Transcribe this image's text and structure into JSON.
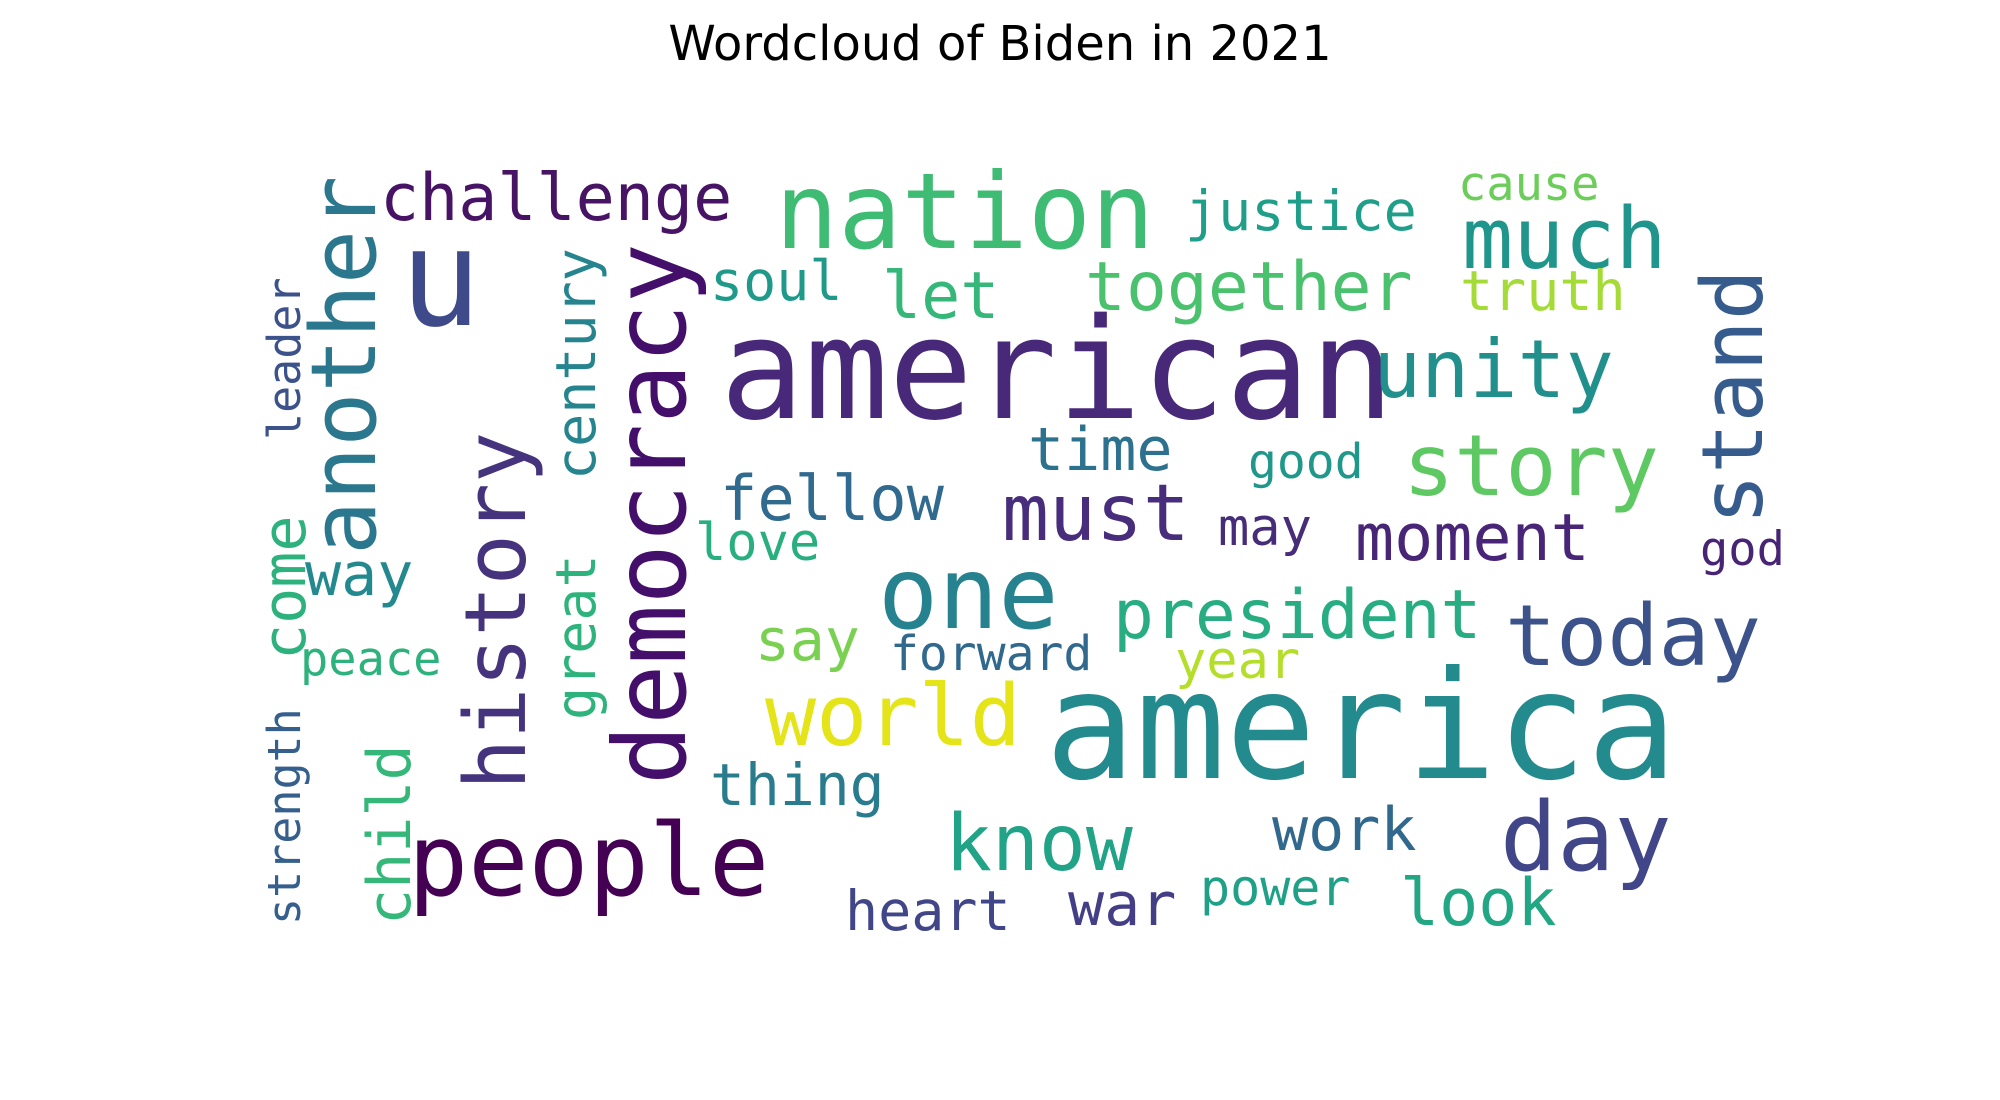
{
  "chart_data": {
    "type": "wordcloud",
    "title": "Wordcloud of Biden in 2021",
    "words": [
      {
        "text": "american",
        "color": "#482878",
        "rotate": 0
      },
      {
        "text": "america",
        "color": "#238a8d",
        "rotate": 0
      },
      {
        "text": "nation",
        "color": "#3fbc73",
        "rotate": 0
      },
      {
        "text": "u",
        "color": "#3e4a89",
        "rotate": 0
      },
      {
        "text": "democracy",
        "color": "#440f6a",
        "rotate": -90
      },
      {
        "text": "people",
        "color": "#440154",
        "rotate": 0
      },
      {
        "text": "one",
        "color": "#26828e",
        "rotate": 0
      },
      {
        "text": "another",
        "color": "#2a778e",
        "rotate": -90
      },
      {
        "text": "history",
        "color": "#46337e",
        "rotate": -90
      },
      {
        "text": "day",
        "color": "#404688",
        "rotate": 0
      },
      {
        "text": "today",
        "color": "#3b528b",
        "rotate": 0
      },
      {
        "text": "much",
        "color": "#1f958b",
        "rotate": 0
      },
      {
        "text": "stand",
        "color": "#365c8d",
        "rotate": -90
      },
      {
        "text": "story",
        "color": "#5ec962",
        "rotate": 0
      },
      {
        "text": "unity",
        "color": "#21908d",
        "rotate": 0
      },
      {
        "text": "world",
        "color": "#e4e419",
        "rotate": 0
      },
      {
        "text": "know",
        "color": "#20a386",
        "rotate": 0
      },
      {
        "text": "must",
        "color": "#472d7b",
        "rotate": 0
      },
      {
        "text": "challenge",
        "color": "#471365",
        "rotate": 0
      },
      {
        "text": "together",
        "color": "#4ac16d",
        "rotate": 0
      },
      {
        "text": "president",
        "color": "#27ad81",
        "rotate": 0
      },
      {
        "text": "moment",
        "color": "#482576",
        "rotate": 0
      },
      {
        "text": "fellow",
        "color": "#306a8e",
        "rotate": 0
      },
      {
        "text": "war",
        "color": "#433e85",
        "rotate": 0
      },
      {
        "text": "look",
        "color": "#22a785",
        "rotate": 0
      },
      {
        "text": "come",
        "color": "#2db27d",
        "rotate": -90
      },
      {
        "text": "let",
        "color": "#35b779",
        "rotate": 0
      },
      {
        "text": "justice",
        "color": "#1f9e89",
        "rotate": 0
      },
      {
        "text": "century",
        "color": "#25848e",
        "rotate": -90
      },
      {
        "text": "great",
        "color": "#2eb37c",
        "rotate": -90
      },
      {
        "text": "child",
        "color": "#35b779",
        "rotate": -90
      },
      {
        "text": "way",
        "color": "#23898e",
        "rotate": 0
      },
      {
        "text": "work",
        "color": "#31688e",
        "rotate": 0
      },
      {
        "text": "time",
        "color": "#2c718e",
        "rotate": 0
      },
      {
        "text": "heart",
        "color": "#404688",
        "rotate": 0
      },
      {
        "text": "say",
        "color": "#7ad151",
        "rotate": 0
      },
      {
        "text": "truth",
        "color": "#a5db36",
        "rotate": 0
      },
      {
        "text": "thing",
        "color": "#287c8e",
        "rotate": 0
      },
      {
        "text": "power",
        "color": "#1fa187",
        "rotate": 0
      },
      {
        "text": "soul",
        "color": "#1f9a8a",
        "rotate": 0
      },
      {
        "text": "may",
        "color": "#472c7a",
        "rotate": 0
      },
      {
        "text": "forward",
        "color": "#31688e",
        "rotate": 0
      },
      {
        "text": "love",
        "color": "#29af7f",
        "rotate": 0
      },
      {
        "text": "year",
        "color": "#b5de2b",
        "rotate": 0
      },
      {
        "text": "leader",
        "color": "#3b528b",
        "rotate": -90
      },
      {
        "text": "good",
        "color": "#1f988b",
        "rotate": 0
      },
      {
        "text": "cause",
        "color": "#6ccd5a",
        "rotate": 0
      },
      {
        "text": "peace",
        "color": "#2db27d",
        "rotate": 0
      },
      {
        "text": "god",
        "color": "#482475",
        "rotate": 0
      },
      {
        "text": "strength",
        "color": "#355f8d",
        "rotate": -90
      }
    ]
  }
}
